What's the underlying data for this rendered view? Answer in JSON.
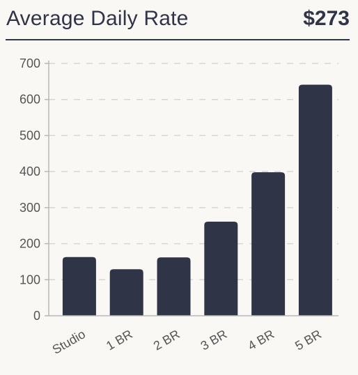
{
  "header": {
    "title": "Average Daily Rate",
    "value": "$273"
  },
  "colors": {
    "bar": "#2f3447",
    "axis": "#b7b7b7",
    "grid": "#d6d6d6",
    "tick_text": "#555555",
    "background": "#faf8f4"
  },
  "chart_data": {
    "type": "bar",
    "title": "Average Daily Rate",
    "categories": [
      "Studio",
      "1 BR",
      "2 BR",
      "3 BR",
      "4 BR",
      "5 BR"
    ],
    "values": [
      163,
      129,
      162,
      261,
      398,
      641
    ],
    "ylim": [
      0,
      700
    ],
    "yticks": [
      0,
      100,
      200,
      300,
      400,
      500,
      600,
      700
    ],
    "grid": true,
    "xlabel": "",
    "ylabel": ""
  }
}
